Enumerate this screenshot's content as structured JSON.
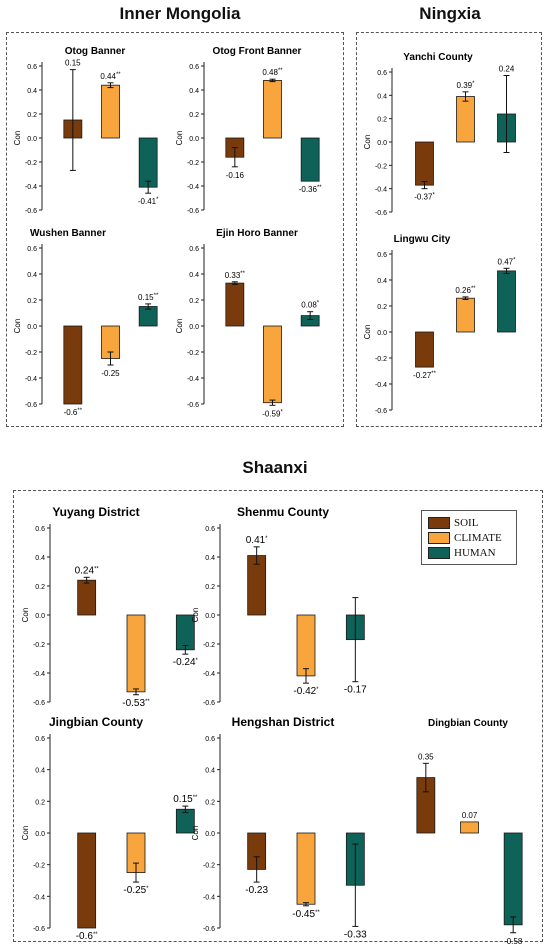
{
  "regions": [
    {
      "id": "inner-mongolia",
      "title": "Inner Mongolia"
    },
    {
      "id": "ningxia",
      "title": "Ningxia"
    },
    {
      "id": "shaanxi",
      "title": "Shaanxi"
    }
  ],
  "legend": [
    {
      "label": "SOIL",
      "color": "#7a3b0c"
    },
    {
      "label": "CLIMATE",
      "color": "#f7a53c"
    },
    {
      "label": "HUMAN",
      "color": "#0e6258"
    }
  ],
  "chart_data": [
    {
      "type": "bar",
      "title": "Otog Banner",
      "ylabel": "Con",
      "ylim": [
        -0.6,
        0.6
      ],
      "categories": [
        "SOIL",
        "CLIMATE",
        "HUMAN"
      ],
      "values": [
        0.15,
        0.44,
        -0.41
      ],
      "errors": [
        0.42,
        0.02,
        0.05
      ],
      "labels": [
        "0.15",
        "0.44",
        "-0.41"
      ],
      "sig": [
        "",
        "**",
        "*"
      ],
      "yticks": [
        "0.6",
        "0.4",
        "0.2",
        "0.0",
        "-0.2",
        "-0.4",
        "-0.6"
      ]
    },
    {
      "type": "bar",
      "title": "Otog Front Banner",
      "ylabel": "Con",
      "ylim": [
        -0.6,
        0.6
      ],
      "categories": [
        "SOIL",
        "CLIMATE",
        "HUMAN"
      ],
      "values": [
        -0.16,
        0.48,
        -0.36
      ],
      "errors": [
        0.08,
        0.01,
        0.0
      ],
      "labels": [
        "-0.16",
        "0.48",
        "-0.36"
      ],
      "sig": [
        "",
        "**",
        "**"
      ],
      "yticks": [
        "0.6",
        "0.4",
        "0.2",
        "0.0",
        "-0.2",
        "-0.4",
        "-0.6"
      ]
    },
    {
      "type": "bar",
      "title": "Wushen Banner",
      "ylabel": "Con",
      "ylim": [
        -0.6,
        0.6
      ],
      "categories": [
        "SOIL",
        "CLIMATE",
        "HUMAN"
      ],
      "values": [
        -0.6,
        -0.25,
        0.15
      ],
      "errors": [
        0.0,
        0.05,
        0.02
      ],
      "labels": [
        "-0.6",
        "-0.25",
        "0.15"
      ],
      "sig": [
        "**",
        "",
        "**"
      ],
      "yticks": [
        "0.6",
        "0.4",
        "0.2",
        "0.0",
        "-0.2",
        "-0.4",
        "-0.6"
      ]
    },
    {
      "type": "bar",
      "title": "Ejin Horo Banner",
      "ylabel": "Con",
      "ylim": [
        -0.6,
        0.6
      ],
      "categories": [
        "SOIL",
        "CLIMATE",
        "HUMAN"
      ],
      "values": [
        0.33,
        -0.59,
        0.08
      ],
      "errors": [
        0.01,
        0.02,
        0.03
      ],
      "labels": [
        "0.33",
        "-0.59",
        "0.08"
      ],
      "sig": [
        "**",
        "*",
        "*"
      ],
      "yticks": [
        "0.6",
        "0.4",
        "0.2",
        "0.0",
        "-0.2",
        "-0.4",
        "-0.6"
      ]
    },
    {
      "type": "bar",
      "title": "Yanchi County",
      "ylabel": "Con",
      "ylim": [
        -0.6,
        0.6
      ],
      "categories": [
        "SOIL",
        "CLIMATE",
        "HUMAN"
      ],
      "values": [
        -0.37,
        0.39,
        0.24
      ],
      "errors": [
        0.03,
        0.04,
        0.33
      ],
      "labels": [
        "-0.37",
        "0.39",
        "0.24"
      ],
      "sig": [
        "*",
        "*",
        ""
      ],
      "yticks": [
        "0.6",
        "0.4",
        "0.2",
        "0.0",
        "-0.2",
        "-0.4",
        "-0.6"
      ]
    },
    {
      "type": "bar",
      "title": "Lingwu City",
      "ylabel": "Con",
      "ylim": [
        -0.6,
        0.6
      ],
      "categories": [
        "SOIL",
        "CLIMATE",
        "HUMAN"
      ],
      "values": [
        -0.27,
        0.26,
        0.47
      ],
      "errors": [
        0.0,
        0.01,
        0.02
      ],
      "labels": [
        "-0.27",
        "0.26",
        "0.47"
      ],
      "sig": [
        "**",
        "**",
        "*"
      ],
      "yticks": [
        "0.6",
        "0.4",
        "0.2",
        "0.0",
        "-0.2",
        "-0.4",
        "-0.6"
      ]
    },
    {
      "type": "bar",
      "title": "Yuyang District",
      "ylabel": "Con",
      "ylim": [
        -0.6,
        0.6
      ],
      "categories": [
        "SOIL",
        "CLIMATE",
        "HUMAN"
      ],
      "values": [
        0.24,
        -0.53,
        -0.24
      ],
      "errors": [
        0.02,
        0.02,
        0.03
      ],
      "labels": [
        "0.24",
        "-0.53",
        "-0.24"
      ],
      "sig": [
        "**",
        "**",
        "*"
      ],
      "yticks": [
        "0.6",
        "0.4",
        "0.2",
        "0.0",
        "-0.2",
        "-0.4",
        "-0.6"
      ]
    },
    {
      "type": "bar",
      "title": "Shenmu County",
      "ylabel": "Con",
      "ylim": [
        -0.6,
        0.6
      ],
      "categories": [
        "SOIL",
        "CLIMATE",
        "HUMAN"
      ],
      "values": [
        0.41,
        -0.42,
        -0.17
      ],
      "errors": [
        0.06,
        0.05,
        0.29
      ],
      "labels": [
        "0.41",
        "-0.42",
        "-0.17"
      ],
      "sig": [
        "*",
        "*",
        ""
      ],
      "yticks": [
        "0.6",
        "0.4",
        "0.2",
        "0.0",
        "-0.2",
        "-0.4",
        "-0.6"
      ]
    },
    {
      "type": "bar",
      "title": "Jingbian County",
      "ylabel": "Con",
      "ylim": [
        -0.6,
        0.6
      ],
      "categories": [
        "SOIL",
        "CLIMATE",
        "HUMAN"
      ],
      "values": [
        -0.6,
        -0.25,
        0.15
      ],
      "errors": [
        0.0,
        0.06,
        0.02
      ],
      "labels": [
        "-0.6",
        "-0.25",
        "0.15"
      ],
      "sig": [
        "**",
        "*",
        "**"
      ],
      "yticks": [
        "0.6",
        "0.4",
        "0.2",
        "0.0",
        "-0.2",
        "-0.4",
        "-0.6"
      ]
    },
    {
      "type": "bar",
      "title": "Hengshan District",
      "ylabel": "Con",
      "ylim": [
        -0.6,
        0.6
      ],
      "categories": [
        "SOIL",
        "CLIMATE",
        "HUMAN"
      ],
      "values": [
        -0.23,
        -0.45,
        -0.33
      ],
      "errors": [
        0.08,
        0.01,
        0.26
      ],
      "labels": [
        "-0.23",
        "-0.45",
        "-0.33"
      ],
      "sig": [
        "",
        "**",
        ""
      ],
      "yticks": [
        "0.6",
        "0.4",
        "0.2",
        "0.0",
        "-0.2",
        "-0.4",
        "-0.6"
      ]
    },
    {
      "type": "bar",
      "title": "Dingbian County",
      "ylabel": "",
      "ylim": [
        -0.6,
        0.6
      ],
      "categories": [
        "SOIL",
        "CLIMATE",
        "HUMAN"
      ],
      "values": [
        0.35,
        0.07,
        -0.58
      ],
      "errors": [
        0.09,
        0.0,
        0.05
      ],
      "labels": [
        "0.35",
        "0.07",
        "-0.58"
      ],
      "sig": [
        "",
        "",
        ""
      ],
      "yticks": []
    }
  ]
}
